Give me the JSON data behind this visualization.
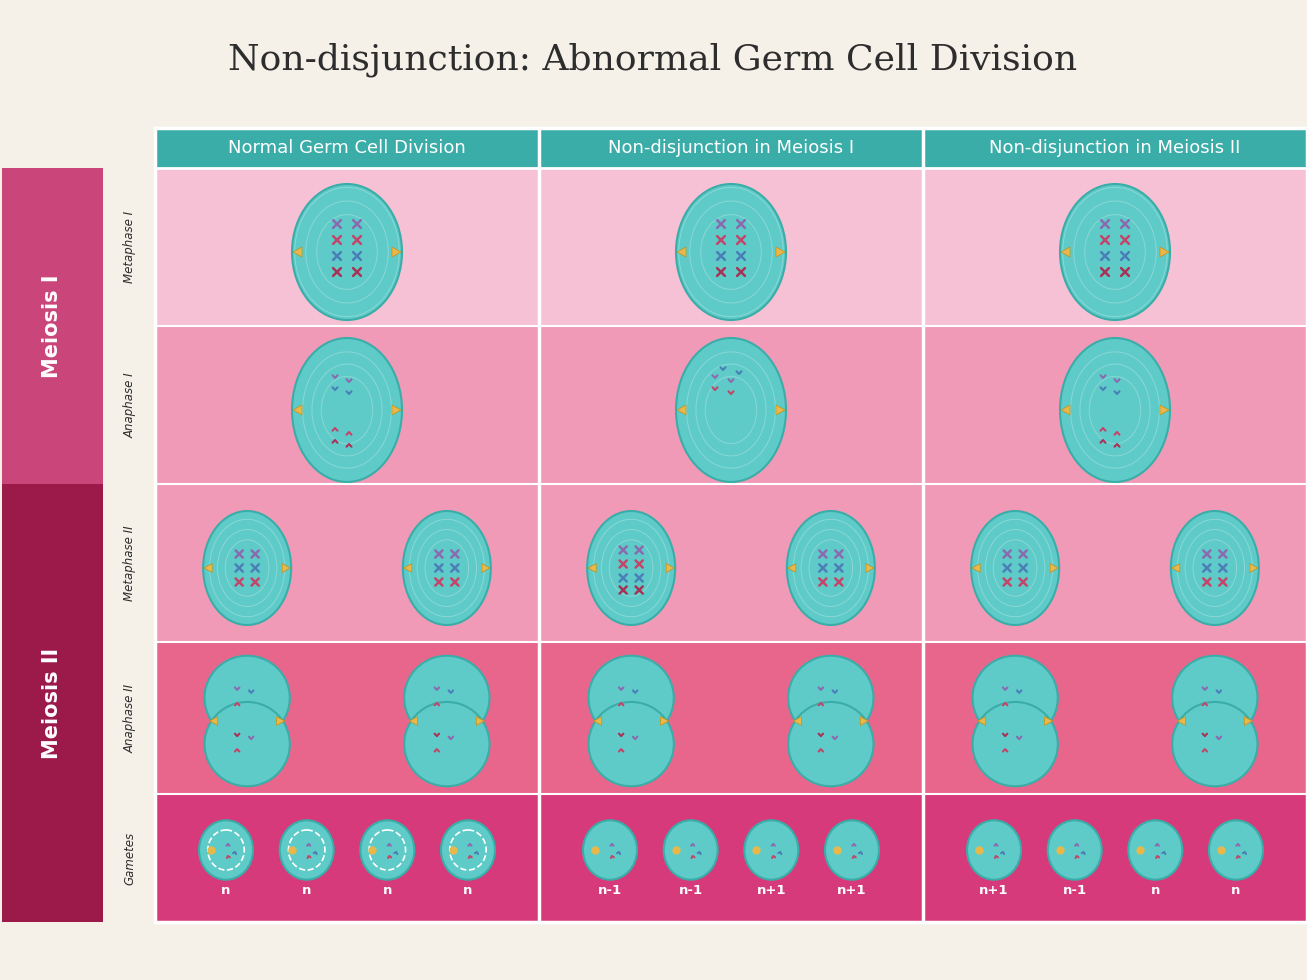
{
  "title": "Non-disjunction: Abnormal Germ Cell Division",
  "title_fontsize": 26,
  "title_color": "#2d2d2d",
  "bg_color": "#f5f0e8",
  "header_bg": "#3aada8",
  "header_text_color": "#ffffff",
  "header_fontsize": 13,
  "col_headers": [
    "Normal Germ Cell Division",
    "Non-disjunction in Meiosis I",
    "Non-disjunction in Meiosis II"
  ],
  "row_headers_sub": [
    "Metaphase I",
    "Anaphase I",
    "Metaphase II",
    "Anaphase II",
    "Gametes"
  ],
  "meiosis1_color_light": "#f7c1d5",
  "meiosis1_color_medium": "#f09ab8",
  "meiosis2_color_medium": "#e8658c",
  "gametes_color": "#d63a7a",
  "meiosis1_label_color": "#c9457a",
  "meiosis2_label_color": "#9b1a4a",
  "cell_color": "#5ecbc8",
  "cell_outline": "#3aada8",
  "arrow_color": "#e8b84b",
  "ch_purple": "#8b6ab0",
  "ch_red": "#c44569",
  "ch_blue": "#4a7fba",
  "ch_darkred": "#a83255",
  "gamete_labels_col0": [
    "n",
    "n",
    "n",
    "n"
  ],
  "gamete_labels_col1": [
    "n-1",
    "n-1",
    "n+1",
    "n+1"
  ],
  "gamete_labels_col2": [
    "n+1",
    "n-1",
    "n",
    "n"
  ]
}
